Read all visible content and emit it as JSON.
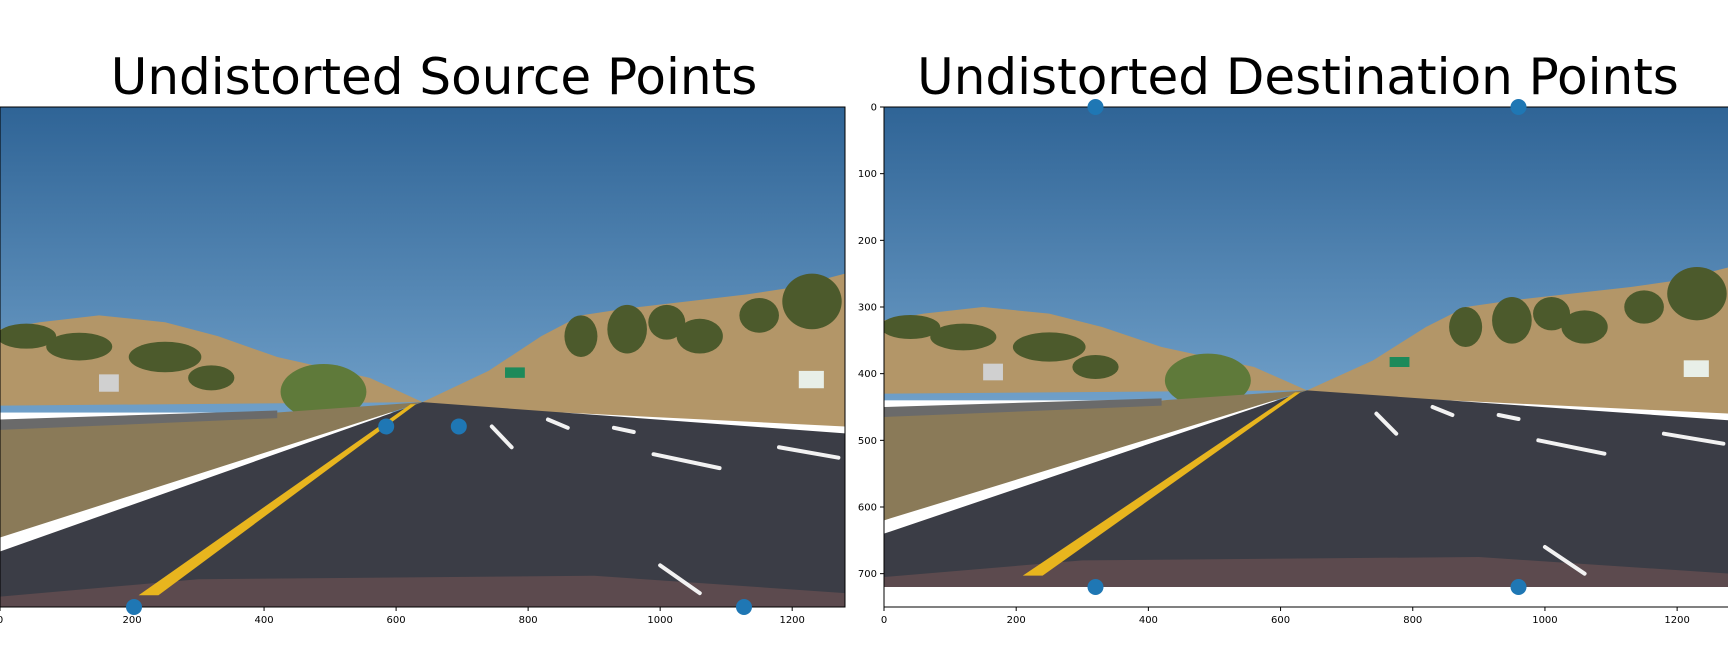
{
  "colors": {
    "sky_top": "#2f6496",
    "sky_bottom": "#6f9fc8",
    "road": "#3b3d46",
    "lane_yellow": "#e8b51e",
    "lane_white": "#f2f2f2",
    "hill": "#b39668",
    "vegetation": "#4c5a2c",
    "hood": "#5c4a4e",
    "point": "#1f77b4"
  },
  "chart_data": [
    {
      "type": "scatter",
      "title": "Undistorted Source Points",
      "background": "road-image",
      "xlim": [
        0,
        1280
      ],
      "ylim": [
        720,
        0
      ],
      "xticks": [
        0,
        200,
        400,
        600,
        800,
        1000,
        1200
      ],
      "yticks": [],
      "points": [
        {
          "x": 585,
          "y": 460
        },
        {
          "x": 695,
          "y": 460
        },
        {
          "x": 203,
          "y": 720
        },
        {
          "x": 1127,
          "y": 720
        }
      ]
    },
    {
      "type": "scatter",
      "title": "Undistorted Destination Points",
      "background": "road-image",
      "xlim": [
        0,
        1280
      ],
      "ylim": [
        750,
        0
      ],
      "xticks": [
        0,
        200,
        400,
        600,
        800,
        1000,
        1200
      ],
      "yticks": [
        0,
        100,
        200,
        300,
        400,
        500,
        600,
        700
      ],
      "points": [
        {
          "x": 320,
          "y": 0
        },
        {
          "x": 960,
          "y": 0
        },
        {
          "x": 320,
          "y": 720
        },
        {
          "x": 960,
          "y": 720
        }
      ]
    }
  ]
}
